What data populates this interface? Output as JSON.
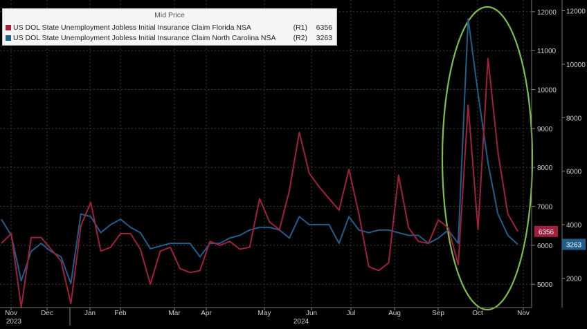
{
  "chart_data": {
    "type": "line",
    "legend": {
      "title": "Mid Price",
      "entries": [
        {
          "name": "US DOL State Unemployment Jobless Initial Insurance Claim Florida NSA",
          "axis": "(R1)",
          "last": "6356"
        },
        {
          "name": "US DOL State Unemployment Jobless Initial Insurance Claim North Carolina NSA",
          "axis": "(R2)",
          "last": "3263"
        }
      ]
    },
    "x_axis": {
      "months": [
        "Nov",
        "Dec",
        "Jan",
        "Feb",
        "Mar",
        "Apr",
        "May",
        "Jun",
        "Jul",
        "Aug",
        "Sep",
        "Oct",
        "Nov"
      ],
      "years": [
        "2023",
        "2024"
      ]
    },
    "axis_r1": {
      "ticks": [
        "12000",
        "11000",
        "10000",
        "9000",
        "8000",
        "7000",
        "6000",
        "5000"
      ],
      "range": [
        4400,
        12300
      ]
    },
    "axis_r2": {
      "ticks": [
        "12000",
        "10000",
        "8000",
        "6000",
        "4000",
        "2000"
      ],
      "range": [
        900,
        12400
      ]
    },
    "series": [
      {
        "name": "US DOL State Unemployment Jobless Initial Insurance Claim Florida NSA",
        "axis": "R1",
        "color": "#a21f3e",
        "last_label": "6356",
        "values": [
          6050,
          6300,
          4400,
          6200,
          6200,
          5900,
          5600,
          4500,
          6500,
          7100,
          5850,
          5950,
          6300,
          6300,
          5900,
          5000,
          5850,
          5950,
          5400,
          5300,
          5350,
          6100,
          6000,
          6100,
          5900,
          5950,
          7200,
          6600,
          6400,
          7400,
          8900,
          7850,
          7500,
          7200,
          6900,
          7950,
          6800,
          5450,
          5350,
          5550,
          7800,
          6450,
          6100,
          6050,
          6650,
          6450,
          5500,
          9600,
          6400,
          10800,
          8400,
          6800,
          6356
        ]
      },
      {
        "name": "US DOL State Unemployment Jobless Initial Insurance Claim North Carolina NSA",
        "axis": "R2",
        "color": "#1f5f8b",
        "last_label": "3263",
        "values": [
          4200,
          3600,
          1900,
          3000,
          3300,
          3000,
          2800,
          1800,
          4400,
          4300,
          3700,
          4000,
          4200,
          3900,
          3700,
          3100,
          3200,
          3300,
          3300,
          3300,
          2800,
          3300,
          3300,
          3500,
          3600,
          3800,
          3900,
          3900,
          3800,
          3500,
          4300,
          4000,
          4000,
          4000,
          3300,
          4300,
          3800,
          3700,
          3800,
          3800,
          3700,
          3600,
          3600,
          3300,
          3500,
          3800,
          3300,
          11700,
          8900,
          6300,
          4400,
          3600,
          3263
        ]
      }
    ]
  }
}
